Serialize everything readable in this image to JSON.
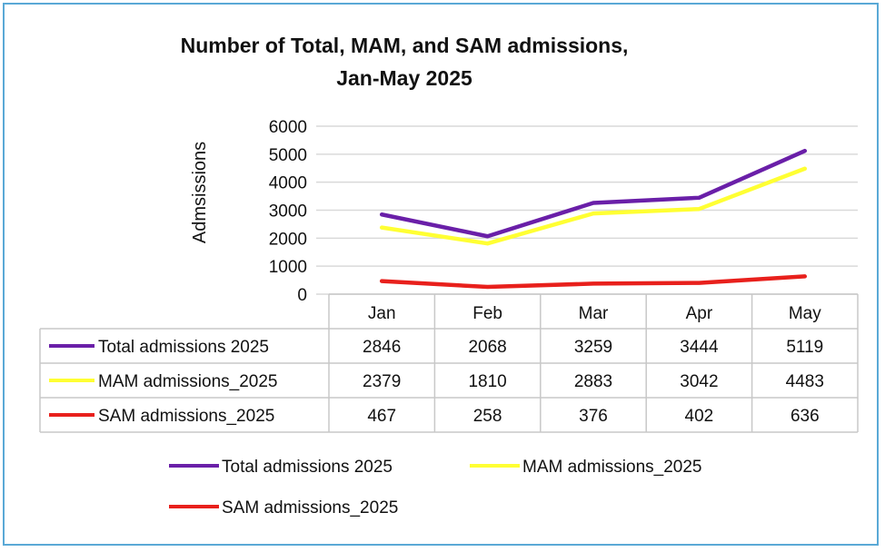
{
  "chart_data": {
    "type": "line",
    "title_line1": "Number of Total, MAM, and SAM admissions,",
    "title_line2": "Jan-May 2025",
    "xlabel": "",
    "ylabel": "Admsissions",
    "ylim": [
      0,
      6000
    ],
    "yticks": [
      0,
      1000,
      2000,
      3000,
      4000,
      5000,
      6000
    ],
    "grid": true,
    "legend_position": "bottom",
    "categories": [
      "Jan",
      "Feb",
      "Mar",
      "Apr",
      "May"
    ],
    "series": [
      {
        "name": "Total admissions 2025",
        "color": "#6a1fa8",
        "values": [
          2846,
          2068,
          3259,
          3444,
          5119
        ],
        "display": [
          "2846",
          "2068",
          "3259",
          "3444",
          "5119"
        ]
      },
      {
        "name": "MAM admissions_2025",
        "color": "#ffff33",
        "values": [
          2379,
          1810,
          2883,
          3042,
          4483
        ],
        "display": [
          "2379",
          "1810",
          "2883",
          "3042",
          "4483"
        ]
      },
      {
        "name": "SAM admissions_2025",
        "color": "#e8201c",
        "values": [
          467,
          258,
          376,
          402,
          636
        ],
        "display": [
          "467",
          "258",
          "376",
          "402",
          "636"
        ]
      }
    ]
  }
}
